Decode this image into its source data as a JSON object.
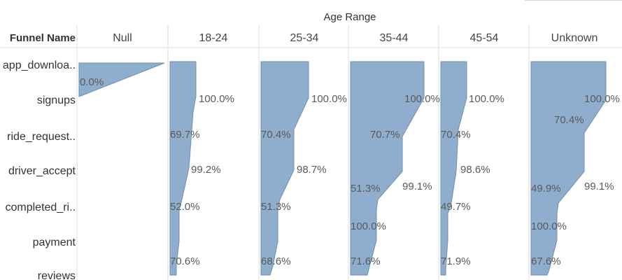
{
  "chart_data": {
    "type": "area",
    "orientation": "funnel",
    "header": {
      "column_axis_title": "Age Range",
      "row_axis_title": "Funnel Name"
    },
    "rows": [
      "app_downloa..",
      "signups",
      "ride_request..",
      "driver_accept",
      "completed_ri..",
      "payment",
      "reviews"
    ],
    "columns": [
      "Null",
      "18-24",
      "25-34",
      "35-44",
      "45-54",
      "Unknown"
    ],
    "measure": "step conversion (%)",
    "panels": [
      {
        "column": "Null",
        "relative_widths": [
          1.0,
          0.0
        ],
        "labels": [
          "0.0%"
        ]
      },
      {
        "column": "18-24",
        "relative_widths": [
          0.36,
          0.36,
          0.25,
          0.248,
          0.13,
          0.13,
          0.092,
          0.092
        ],
        "labels": [
          "100.0%",
          "69.7%",
          "99.2%",
          "52.0%",
          "70.6%"
        ]
      },
      {
        "column": "25-34",
        "relative_widths": [
          0.52,
          0.52,
          0.36,
          0.36,
          0.18,
          0.18,
          0.13,
          0.13
        ],
        "labels": [
          "100.0%",
          "70.4%",
          "98.7%",
          "51.3%",
          "68.6%"
        ]
      },
      {
        "column": "35-44",
        "relative_widths": [
          0.96,
          0.96,
          0.68,
          0.67,
          0.34,
          0.34,
          0.25,
          0.25
        ],
        "labels": [
          "100.0%",
          "70.7%",
          "99.1%",
          "51.3%",
          "100.0%",
          "71.6%"
        ]
      },
      {
        "column": "45-54",
        "relative_widths": [
          0.3,
          0.3,
          0.21,
          0.2,
          0.1,
          0.1,
          0.07,
          0.07
        ],
        "labels": [
          "100.0%",
          "70.4%",
          "98.6%",
          "49.7%",
          "71.9%"
        ]
      },
      {
        "column": "Unknown",
        "relative_widths": [
          0.91,
          0.91,
          0.64,
          0.63,
          0.31,
          0.31,
          0.22,
          0.22
        ],
        "labels": [
          "100.0%",
          "70.4%",
          "99.1%",
          "49.9%",
          "100.0%",
          "67.6%"
        ]
      }
    ],
    "colors": {
      "fill": "#8fadcc",
      "stroke": "#6f8fb3",
      "grid": "#dddddd",
      "text": "#5a5a5a"
    }
  }
}
